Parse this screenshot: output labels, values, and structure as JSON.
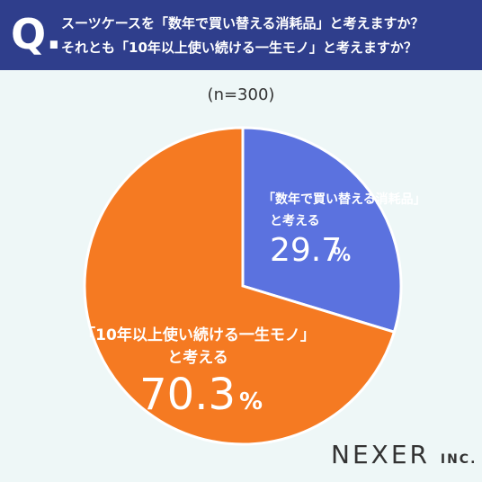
{
  "header": {
    "q_mark": "Q.",
    "line1": "スーツケースを「数年で買い替える消耗品」と考えますか？",
    "line2": "それとも「10年以上使い続ける一生モノ」と考えますか？"
  },
  "sample_size": "(n=300)",
  "logo": {
    "main": "NEXER",
    "sub": "INC."
  },
  "colors": {
    "header_bg": "#2f3e8c",
    "slice_short": "#5b72df",
    "slice_long": "#f57a22",
    "background": "#eef7f7"
  },
  "chart_data": {
    "type": "pie",
    "slices": [
      {
        "label_line1": "「数年で買い替える消耗品」",
        "label_line2": "と考える",
        "value": 29.7,
        "value_text": "29.7",
        "unit": "%",
        "color": "#5b72df"
      },
      {
        "label_line1": "「10年以上使い続ける一生モノ」",
        "label_line2": "と考える",
        "value": 70.3,
        "value_text": "70.3",
        "unit": "%",
        "color": "#f57a22"
      }
    ]
  }
}
